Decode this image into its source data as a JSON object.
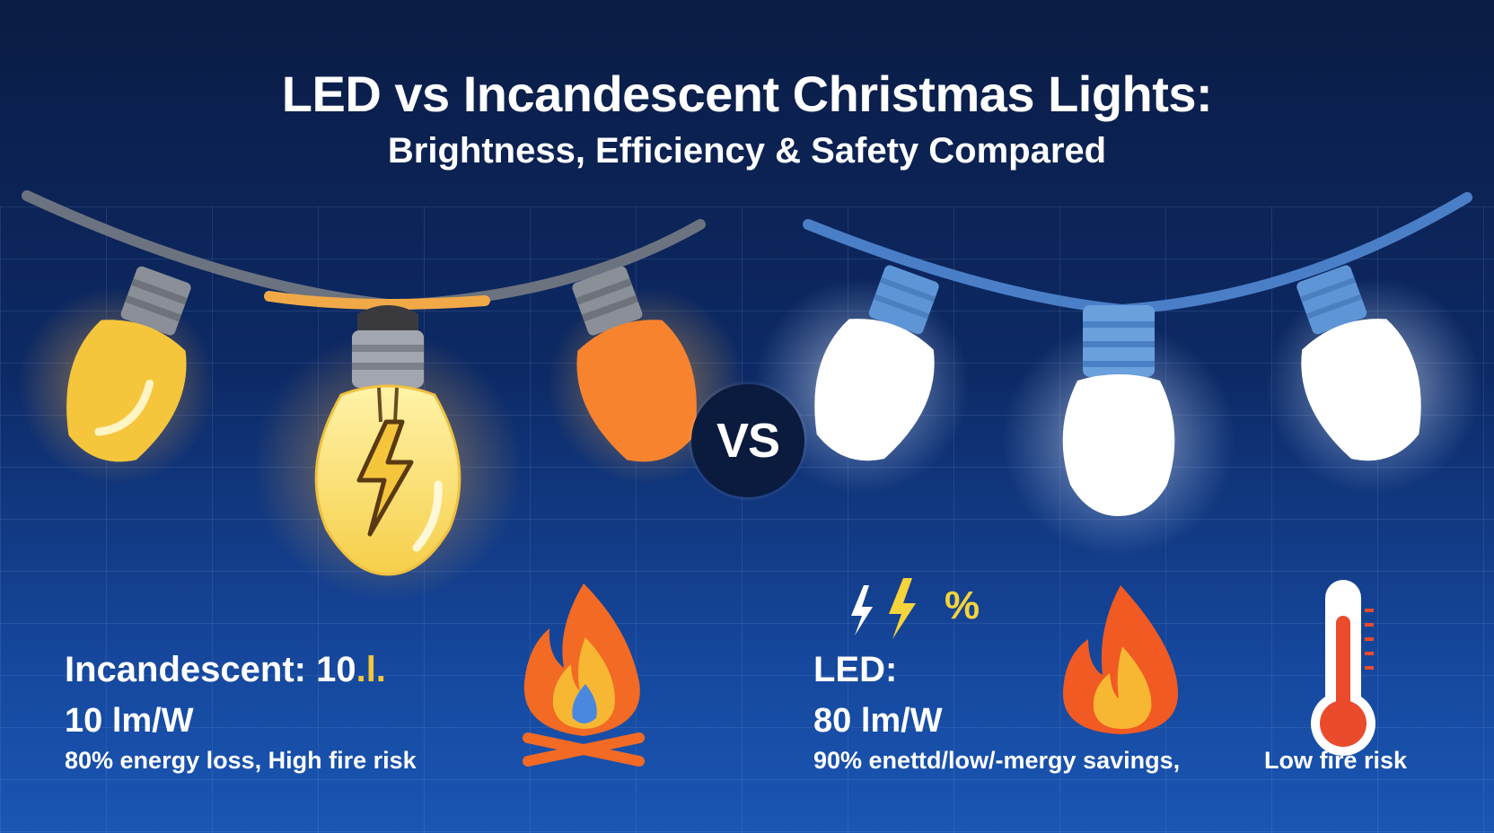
{
  "header": {
    "title": "LED vs Incandescent Christmas Lights:",
    "subtitle": "Brightness, Efficiency & Safety Compared"
  },
  "vs_badge": "VS",
  "incandescent": {
    "label_main": "Incandescent: 10",
    "label_suffix": ".l.",
    "efficiency": "10 lm/W",
    "note": "80% energy loss, High fire risk",
    "bulb_colors": [
      "#f5c63c",
      "#fbe07a",
      "#f7832e"
    ],
    "icons": [
      "bulb-icon",
      "lightning-icon",
      "campfire-icon"
    ]
  },
  "led": {
    "label": "LED:",
    "efficiency": "80 lm/W",
    "note": "90% enettd/low/-mergy savings,",
    "fire_note": "Low fire risk",
    "glyph_text": "%",
    "bulb_colors": [
      "#ffffff",
      "#ffffff",
      "#ffffff"
    ],
    "icons": [
      "bulb-icon",
      "flame-icon",
      "thermometer-icon"
    ]
  },
  "colors": {
    "background_top": "#0a1c44",
    "background_bottom": "#1a56b4",
    "cord_incandescent": "#6c7380",
    "cord_led": "#4a7fc8",
    "accent_yellow": "#f5c63c",
    "fire_orange": "#f26a24"
  }
}
